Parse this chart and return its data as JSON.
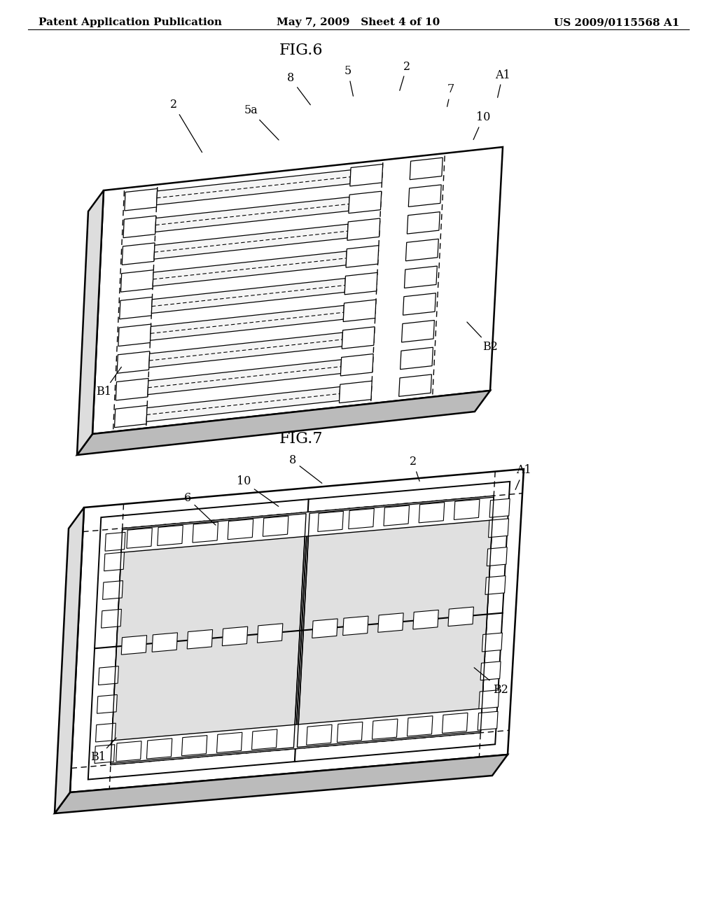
{
  "background_color": "#ffffff",
  "header": {
    "left": "Patent Application Publication",
    "center": "May 7, 2009   Sheet 4 of 10",
    "right": "US 2009/0115568 A1",
    "font_size": 11
  },
  "fig6_title": "FIG.6",
  "fig7_title": "FIG.7",
  "line_color": "#000000",
  "face_color": "#ffffff",
  "side_color": "#cccccc",
  "bottom_color": "#aaaaaa"
}
